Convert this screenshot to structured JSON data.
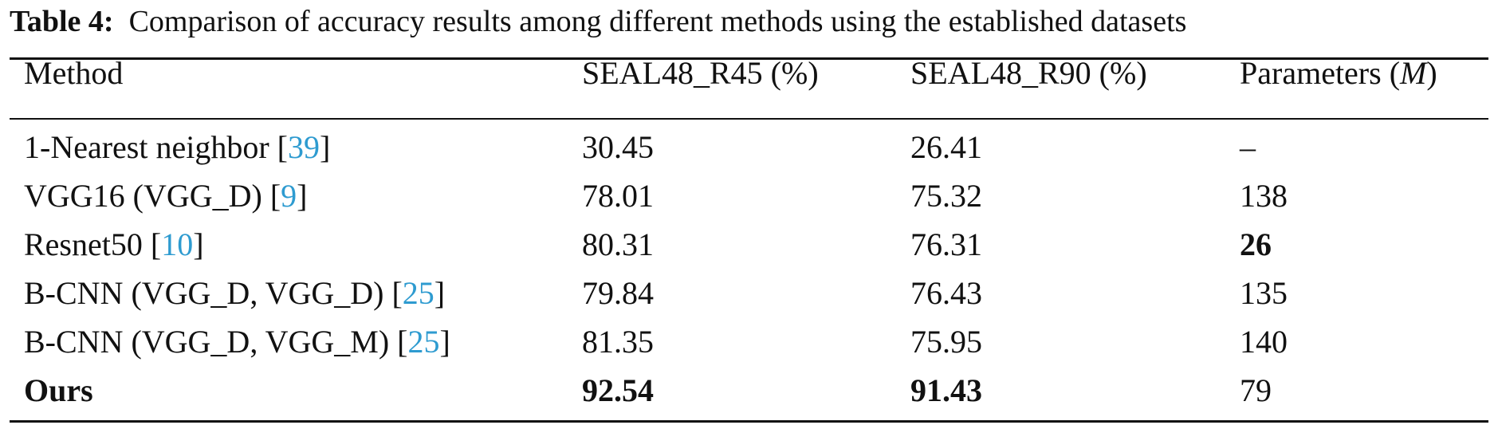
{
  "caption": {
    "label": "Table 4:",
    "text": "Comparison of accuracy results among different methods using the established datasets"
  },
  "headers": {
    "method": "Method",
    "r45": "SEAL48_R45 (%)",
    "r90": "SEAL48_R90 (%)",
    "params_prefix": "Parameters (",
    "params_unit": "M",
    "params_suffix": ")"
  },
  "rows": [
    {
      "method": "1-Nearest neighbor [",
      "ref": "39",
      "close": "]",
      "r45": "30.45",
      "r90": "26.41",
      "params": "–"
    },
    {
      "method": "VGG16 (VGG_D) [",
      "ref": "9",
      "close": "]",
      "r45": "78.01",
      "r90": "75.32",
      "params": "138"
    },
    {
      "method": "Resnet50 [",
      "ref": "10",
      "close": "]",
      "r45": "80.31",
      "r90": "76.31",
      "params": "26"
    },
    {
      "method": "B-CNN (VGG_D, VGG_D) [",
      "ref": "25",
      "close": "]",
      "r45": "79.84",
      "r90": "76.43",
      "params": "135"
    },
    {
      "method": "B-CNN (VGG_D, VGG_M) [",
      "ref": "25",
      "close": "]",
      "r45": "81.35",
      "r90": "75.95",
      "params": "140"
    },
    {
      "method": "Ours",
      "ref": "",
      "close": "",
      "r45": "92.54",
      "r90": "91.43",
      "params": "79"
    }
  ]
}
